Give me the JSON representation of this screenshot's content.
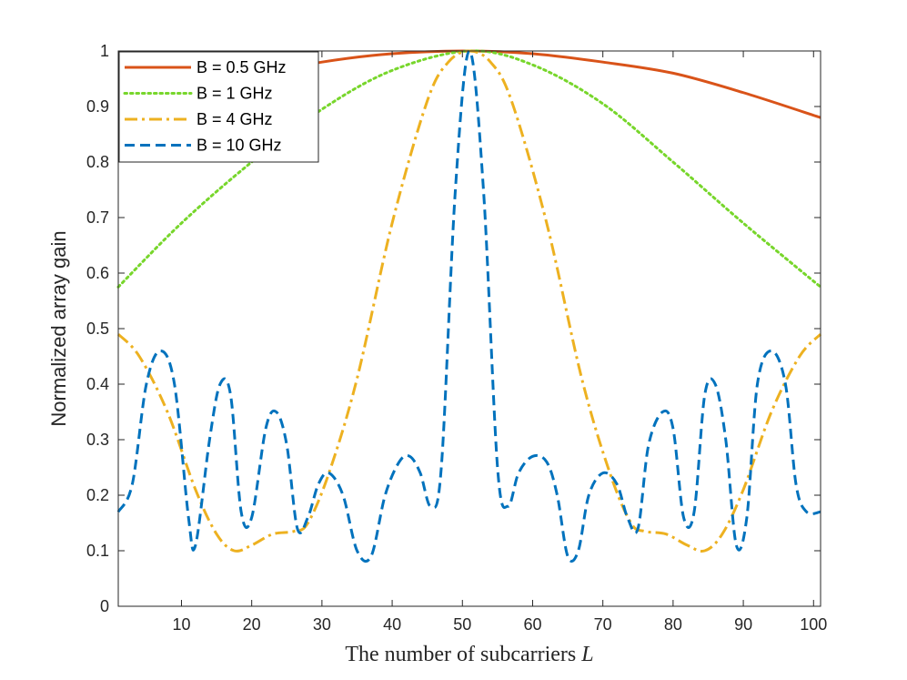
{
  "chart_data": {
    "type": "line",
    "title": "",
    "xlabel": "The number of subcarriers",
    "xlabel_var": "L",
    "ylabel": "Normalized array gain",
    "xlim": [
      1,
      101
    ],
    "ylim": [
      0,
      1
    ],
    "x_ticks": [
      10,
      20,
      30,
      40,
      50,
      60,
      70,
      80,
      90,
      100
    ],
    "y_ticks": [
      0,
      0.1,
      0.2,
      0.3,
      0.4,
      0.5,
      0.6,
      0.7,
      0.8,
      0.9,
      1
    ],
    "grid": false,
    "legend_position": "top-left",
    "series": [
      {
        "name": "B = 0.5 GHz",
        "color": "#D95319",
        "style": "solid",
        "x": [
          1,
          10,
          20,
          30,
          40,
          51,
          60,
          70,
          80,
          90,
          101
        ],
        "y": [
          0.88,
          0.92,
          0.955,
          0.98,
          0.995,
          1.0,
          0.995,
          0.98,
          0.96,
          0.925,
          0.88
        ]
      },
      {
        "name": "B = 1 GHz",
        "color": "#77D62B",
        "style": "dotted",
        "x": [
          1,
          10,
          20,
          30,
          40,
          51,
          60,
          70,
          80,
          90,
          101
        ],
        "y": [
          0.575,
          0.69,
          0.8,
          0.895,
          0.965,
          1.0,
          0.975,
          0.905,
          0.8,
          0.69,
          0.575
        ]
      },
      {
        "name": "B = 4 GHz",
        "color": "#EDB120",
        "style": "dashdot",
        "x": [
          1,
          4,
          8,
          12,
          15,
          17.5,
          20,
          23,
          26,
          28,
          31,
          35,
          40,
          45,
          48,
          51,
          54,
          57,
          62,
          67,
          71,
          74,
          76,
          79,
          82,
          84.5,
          87,
          90,
          94,
          98,
          101
        ],
        "y": [
          0.49,
          0.45,
          0.35,
          0.21,
          0.13,
          0.1,
          0.11,
          0.13,
          0.135,
          0.15,
          0.24,
          0.41,
          0.69,
          0.91,
          0.98,
          1.0,
          0.98,
          0.91,
          0.69,
          0.41,
          0.24,
          0.15,
          0.135,
          0.13,
          0.11,
          0.1,
          0.13,
          0.21,
          0.35,
          0.45,
          0.49
        ]
      },
      {
        "name": "B = 10 GHz",
        "color": "#0072BD",
        "style": "dashed",
        "x": [
          1,
          3,
          5,
          7,
          9,
          11,
          12,
          14,
          15.5,
          17,
          18.5,
          20,
          22,
          23.5,
          25,
          26.5,
          28,
          29.5,
          31,
          33,
          35,
          37,
          39,
          41,
          42.5,
          44,
          45.5,
          47,
          49,
          51,
          53,
          55,
          56.5,
          58,
          60,
          62,
          63.5,
          65,
          66.5,
          68,
          70,
          72,
          73.5,
          75,
          76.5,
          78.5,
          80,
          81.5,
          83,
          84.5,
          86,
          87.5,
          89,
          90.5,
          92,
          94,
          96,
          97.5,
          99,
          101
        ],
        "y": [
          0.17,
          0.22,
          0.4,
          0.46,
          0.4,
          0.16,
          0.11,
          0.3,
          0.4,
          0.38,
          0.17,
          0.16,
          0.32,
          0.35,
          0.29,
          0.14,
          0.16,
          0.22,
          0.24,
          0.2,
          0.1,
          0.09,
          0.2,
          0.26,
          0.27,
          0.24,
          0.18,
          0.25,
          0.75,
          1.0,
          0.75,
          0.25,
          0.18,
          0.24,
          0.27,
          0.26,
          0.2,
          0.09,
          0.1,
          0.2,
          0.24,
          0.22,
          0.16,
          0.14,
          0.29,
          0.35,
          0.32,
          0.16,
          0.17,
          0.38,
          0.4,
          0.3,
          0.11,
          0.16,
          0.4,
          0.46,
          0.4,
          0.22,
          0.17,
          0.17
        ]
      }
    ]
  }
}
